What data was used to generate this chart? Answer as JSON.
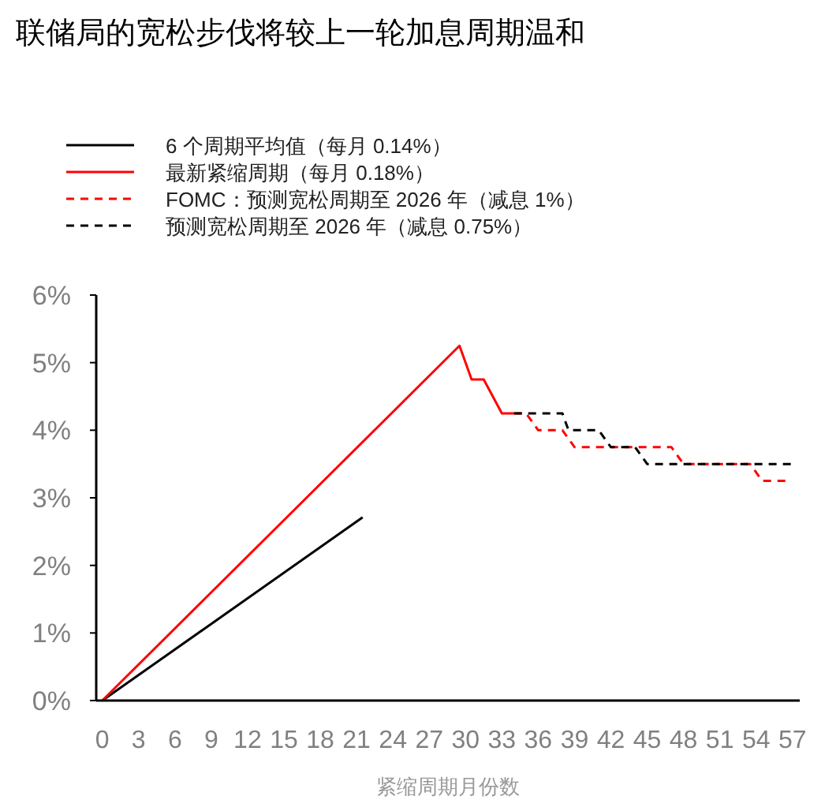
{
  "chart_data": {
    "type": "line",
    "title": "联储局的宽松步伐将较上一轮加息周期温和",
    "xlabel": "紧缩周期月份数",
    "xlim": [
      -0.5,
      57.6
    ],
    "xticks": [
      0,
      3,
      6,
      9,
      12,
      15,
      18,
      21,
      24,
      27,
      30,
      33,
      36,
      39,
      42,
      45,
      48,
      51,
      54,
      57
    ],
    "ylim": [
      0,
      6
    ],
    "yticks": [
      {
        "value": 0,
        "label": "0%"
      },
      {
        "value": 1,
        "label": "1%"
      },
      {
        "value": 2,
        "label": "2%"
      },
      {
        "value": 3,
        "label": "3%"
      },
      {
        "value": 4,
        "label": "4%"
      },
      {
        "value": 5,
        "label": "5%"
      },
      {
        "value": 6,
        "label": "6%"
      }
    ],
    "grid": false,
    "legend": "top left",
    "marker": "none",
    "series": [
      {
        "name": "6 个周期平均值（每月 0.14%）",
        "color": "#000000",
        "line_style": "solid",
        "x": [
          0,
          21.5
        ],
        "values": [
          0,
          2.71
        ]
      },
      {
        "name": "最新紧缩周期（每月 0.18%）",
        "color": "#ff0000",
        "line_style": "solid",
        "x": [
          0,
          29.5,
          30.5,
          31.5,
          33,
          34
        ],
        "values": [
          0,
          5.25,
          4.75,
          4.75,
          4.25,
          4.25
        ]
      },
      {
        "name": "FOMC：预测宽松周期至 2026 年（减息 1%）",
        "color": "#ff0000",
        "line_style": "dashed",
        "x": [
          34,
          35,
          36,
          38,
          39,
          47,
          48,
          53.5,
          54.5,
          56.5
        ],
        "values": [
          4.25,
          4.25,
          4,
          4,
          3.75,
          3.75,
          3.5,
          3.5,
          3.25,
          3.25
        ]
      },
      {
        "name": "预测宽松周期至 2026 年（减息 0.75%）",
        "color": "#000000",
        "line_style": "dashed",
        "x": [
          34,
          38,
          38.5,
          41,
          42,
          44,
          45,
          57
        ],
        "values": [
          4.25,
          4.25,
          4,
          4,
          3.75,
          3.75,
          3.5,
          3.5
        ]
      }
    ]
  }
}
